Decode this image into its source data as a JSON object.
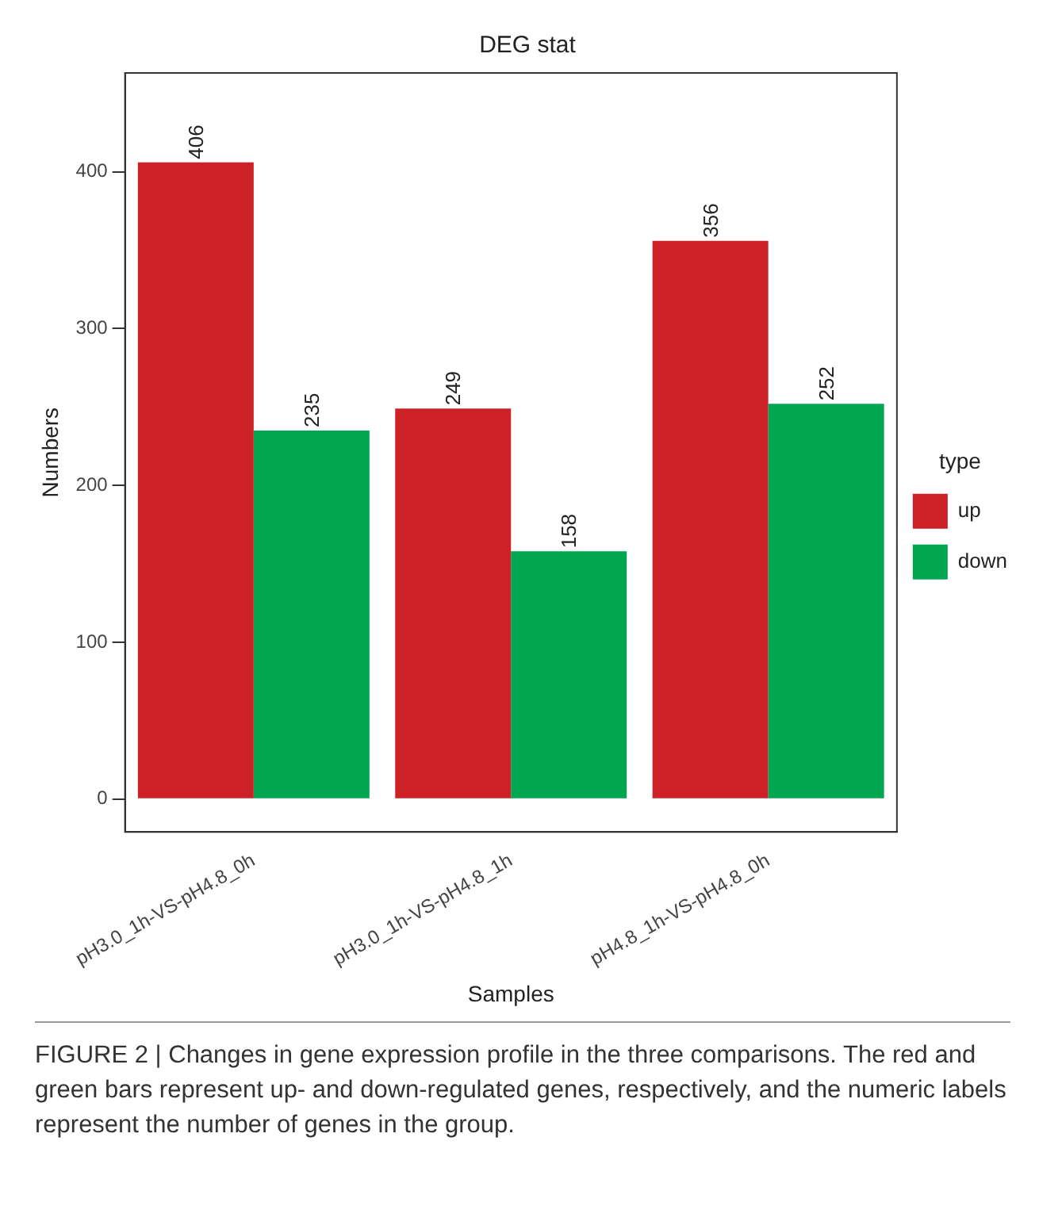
{
  "chart_data": {
    "type": "bar",
    "title": "DEG stat",
    "xlabel": "Samples",
    "ylabel": "Numbers",
    "legend_title": "type",
    "categories": [
      "pH3.0_1h-VS-pH4.8_0h",
      "pH3.0_1h-VS-pH4.8_1h",
      "pH4.8_1h-VS-pH4.8_0h"
    ],
    "series": [
      {
        "name": "up",
        "color": "#cc2127",
        "values": [
          406,
          249,
          356
        ]
      },
      {
        "name": "down",
        "color": "#00a650",
        "values": [
          235,
          158,
          252
        ]
      }
    ],
    "ylim": [
      -21,
      463
    ],
    "yticks": [
      0,
      100,
      200,
      300,
      400
    ],
    "grid": false,
    "legend": "right",
    "data_labels": true,
    "annotations": [
      "FIGURE 2 | Changes in gene expression profile in the three comparisons. The red and green bars represent up- and down-regulated genes, respectively, and the numeric labels represent the number of genes in the group."
    ]
  }
}
